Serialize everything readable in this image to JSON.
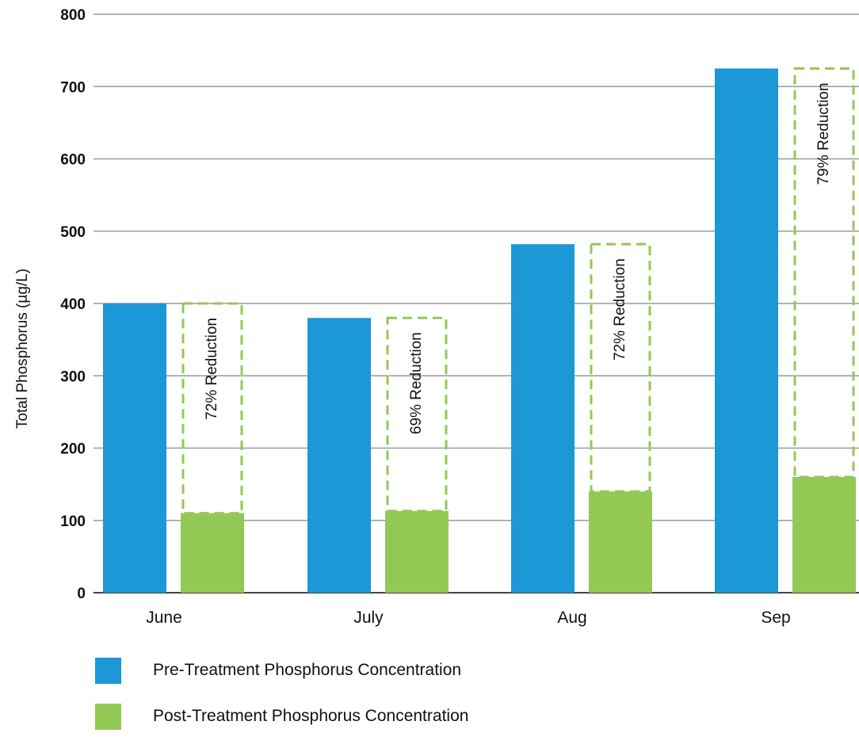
{
  "chart_data": {
    "type": "bar",
    "title": "",
    "xlabel": "",
    "ylabel": "Total Phosphorus (µg/L)",
    "ylim": [
      0,
      800
    ],
    "yticks": [
      0,
      100,
      200,
      300,
      400,
      500,
      600,
      700,
      800
    ],
    "grid": true,
    "legend_position": "bottom-left",
    "categories": [
      "June",
      "July",
      "Aug",
      "Sep"
    ],
    "series": [
      {
        "name": "Pre-Treatment Phosphorus Concentration",
        "color": "#1b98d5",
        "values": [
          400,
          380,
          482,
          725
        ]
      },
      {
        "name": "Post-Treatment Phosphorus Concentration",
        "color": "#92c955",
        "values": [
          110,
          113,
          140,
          160
        ]
      }
    ],
    "annotations": [
      "72% Reduction",
      "69% Reduction",
      "72% Reduction",
      "79% Reduction"
    ]
  }
}
